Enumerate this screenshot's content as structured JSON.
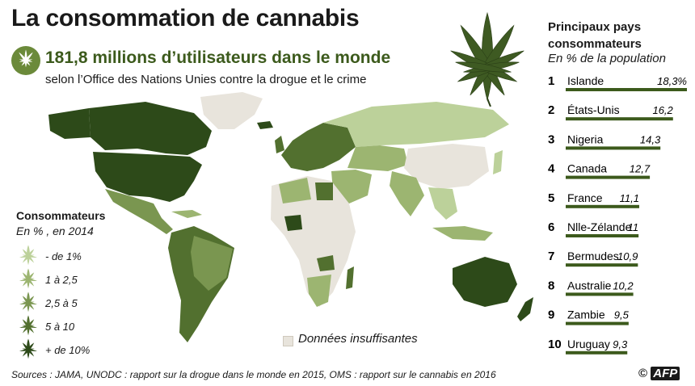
{
  "title": "La consommation de cannabis",
  "headline": "181,8 millions d’utilisateurs dans le monde",
  "subhead": "selon l’Office des Nations Unies contre la drogue et le crime",
  "legend": {
    "title": "Consommateurs",
    "subtitle": "En % , en 2014",
    "items": [
      {
        "label": "- de 1%",
        "color": "#bcd19a"
      },
      {
        "label": "1 à  2,5",
        "color": "#9cb571"
      },
      {
        "label": "2,5 à  5",
        "color": "#7a9650"
      },
      {
        "label": "5 à 10",
        "color": "#52702f"
      },
      {
        "label": "+ de 10%",
        "color": "#2d4a19"
      }
    ],
    "insufficient": "Données insuffisantes",
    "insufficient_color": "#e8e4dc"
  },
  "chart_data": {
    "type": "bar",
    "title": "Principaux pays consommateurs",
    "subtitle": "En % de la population",
    "ranks": [
      1,
      2,
      3,
      4,
      5,
      6,
      7,
      8,
      9,
      10
    ],
    "categories": [
      "Islande",
      "États-Unis",
      "Nigeria",
      "Canada",
      "France",
      "Nlle-Zélande",
      "Bermudes",
      "Australie",
      "Zambie",
      "Uruguay"
    ],
    "value_labels": [
      "18,3%",
      "16,2",
      "14,3",
      "12,7",
      "11,1",
      "11",
      "10,9",
      "10,2",
      "9,5",
      "9,3"
    ],
    "values": [
      18.3,
      16.2,
      14.3,
      12.7,
      11.1,
      11,
      10.9,
      10.2,
      9.5,
      9.3
    ],
    "xlim": [
      0,
      18.3
    ],
    "bar_color": "#3c5a1c"
  },
  "source": "Sources : JAMA, UNODC : rapport sur la drogue dans le monde en 2015, OMS : rapport sur le cannabis en 2016",
  "credit": {
    "copyright": "©",
    "brand": "AFP"
  }
}
